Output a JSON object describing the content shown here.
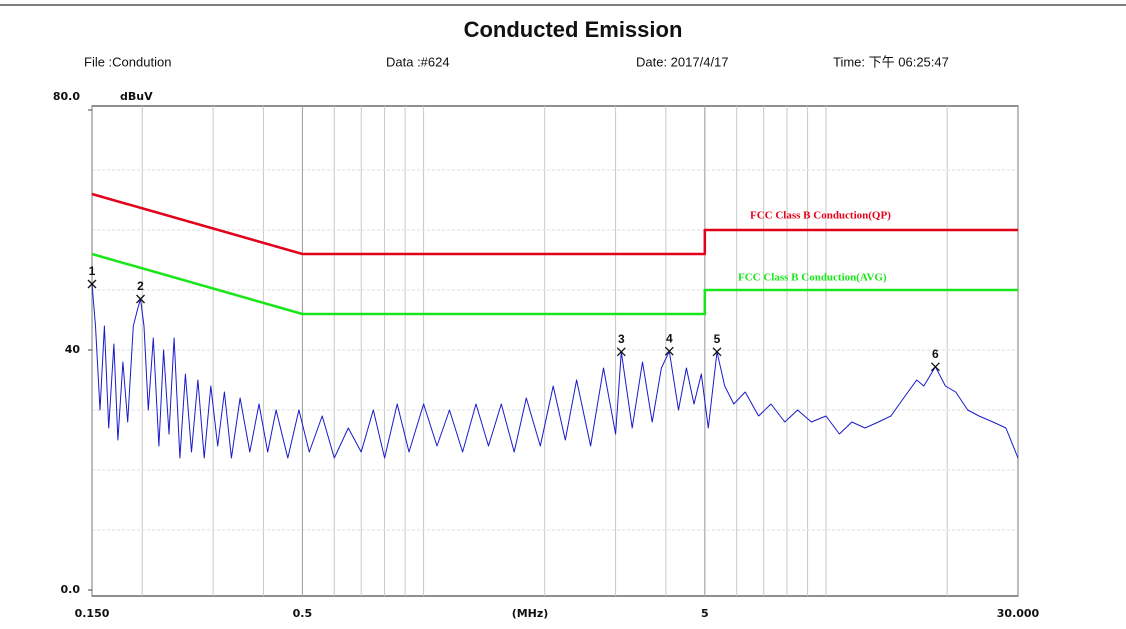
{
  "chart_data": {
    "type": "line",
    "title": "Conducted Emission",
    "info": [
      "File :Condution",
      "Data :#624",
      "Date: 2017/4/17",
      "Time: 下午 06:25:47"
    ],
    "y_label": "dBuV",
    "x_label": "(MHz)",
    "x_scale": "log",
    "xlim": [
      0.15,
      30
    ],
    "ylim": [
      0,
      80
    ],
    "xticks": [
      {
        "value": 0.15,
        "label": "0.150"
      },
      0.5,
      5,
      {
        "value": 30,
        "label": "30.000"
      }
    ],
    "yticks": [
      {
        "value": 0,
        "label": "0.0"
      },
      40,
      {
        "value": 80,
        "label": "80.0"
      }
    ],
    "xgrid": [
      0.2,
      0.3,
      0.4,
      0.5,
      0.6,
      0.7,
      0.8,
      0.9,
      1,
      2,
      3,
      4,
      5,
      6,
      7,
      8,
      9,
      10,
      20
    ],
    "ygrid": [
      10,
      20,
      30,
      40,
      50,
      60,
      70
    ],
    "grid": true,
    "series": [
      {
        "name": "FCC Class B Conduction(QP)",
        "color": "#e3001b",
        "x": [
          0.15,
          0.5,
          5,
          5,
          30
        ],
        "values": [
          66,
          56,
          56,
          60,
          60
        ]
      },
      {
        "name": "FCC Class B Conduction(AVG)",
        "color": "#19e619",
        "x": [
          0.15,
          0.5,
          5,
          5,
          30
        ],
        "values": [
          56,
          46,
          46,
          50,
          50
        ]
      },
      {
        "color": "#1a1acc",
        "x": [
          0.15,
          0.153,
          0.157,
          0.161,
          0.165,
          0.17,
          0.174,
          0.179,
          0.184,
          0.19,
          0.195,
          0.198,
          0.202,
          0.207,
          0.213,
          0.22,
          0.226,
          0.233,
          0.24,
          0.248,
          0.256,
          0.265,
          0.275,
          0.285,
          0.296,
          0.308,
          0.32,
          0.333,
          0.35,
          0.37,
          0.39,
          0.41,
          0.43,
          0.46,
          0.49,
          0.52,
          0.56,
          0.6,
          0.65,
          0.7,
          0.75,
          0.8,
          0.86,
          0.92,
          1.0,
          1.08,
          1.16,
          1.25,
          1.35,
          1.45,
          1.56,
          1.68,
          1.8,
          1.95,
          2.1,
          2.25,
          2.4,
          2.6,
          2.8,
          3.0,
          3.1,
          3.3,
          3.5,
          3.7,
          3.9,
          4.08,
          4.3,
          4.5,
          4.7,
          4.9,
          5.1,
          5.36,
          5.6,
          5.9,
          6.3,
          6.8,
          7.3,
          7.9,
          8.5,
          9.2,
          10,
          10.8,
          11.6,
          12.5,
          13.5,
          14.5,
          15.6,
          16.8,
          17.5,
          18.7,
          19.8,
          21,
          22.5,
          24,
          26,
          28,
          30
        ],
        "values": [
          51,
          44,
          30,
          44,
          27,
          41,
          25,
          38,
          28,
          44,
          47,
          48.5,
          44,
          30,
          42,
          24,
          40,
          26,
          42,
          22,
          36,
          23,
          35,
          22,
          34,
          24,
          33,
          22,
          32,
          23,
          31,
          23,
          30,
          22,
          30,
          23,
          29,
          22,
          27,
          23,
          30,
          22,
          31,
          23,
          31,
          24,
          30,
          23,
          31,
          24,
          31,
          23,
          32,
          24,
          34,
          25,
          35,
          24,
          37,
          26,
          39.7,
          27,
          38,
          28,
          37,
          39.8,
          30,
          37,
          31,
          36,
          27,
          39.7,
          34,
          31,
          33,
          29,
          31,
          28,
          30,
          28,
          29,
          26,
          28,
          27,
          28,
          29,
          32,
          35,
          34,
          37.2,
          34,
          33,
          30,
          29,
          28,
          27,
          22
        ]
      }
    ],
    "markers": [
      {
        "label": "1",
        "x": 0.15,
        "value": 51
      },
      {
        "label": "2",
        "x": 0.198,
        "value": 48.5
      },
      {
        "label": "3",
        "x": 3.1,
        "value": 39.7
      },
      {
        "label": "4",
        "x": 4.08,
        "value": 39.8
      },
      {
        "label": "5",
        "x": 5.36,
        "value": 39.7
      },
      {
        "label": "6",
        "x": 18.7,
        "value": 37.2
      }
    ]
  }
}
